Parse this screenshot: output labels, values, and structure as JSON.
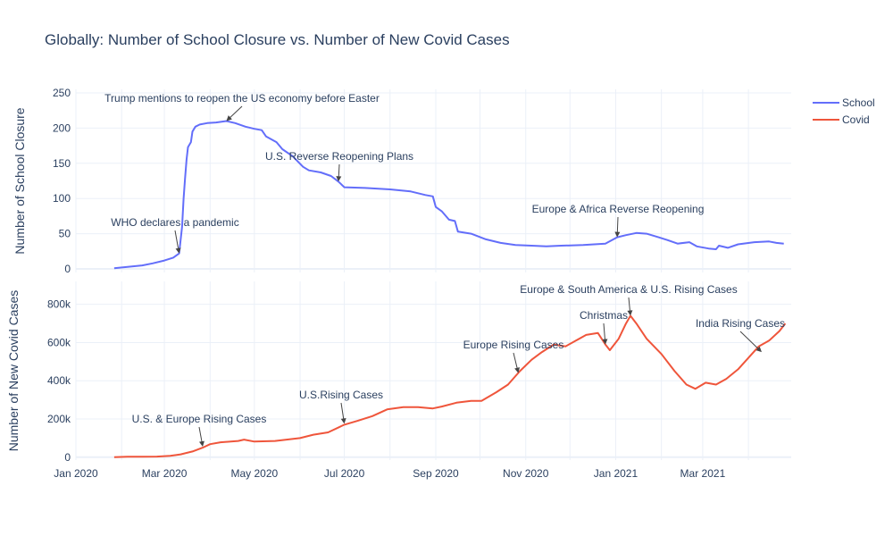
{
  "chart_data": {
    "type": "line",
    "title": "Globally: Number of School Closure vs. Number of New Covid Cases",
    "legend": [
      {
        "name": "School",
        "color": "#636efa"
      },
      {
        "name": "Covid",
        "color": "#ef553b"
      }
    ],
    "legend_position": "top-right",
    "x_ticks": [
      "Jan 2020",
      "Mar 2020",
      "May 2020",
      "Jul 2020",
      "Sep 2020",
      "Nov 2020",
      "Jan 2021",
      "Mar 2021"
    ],
    "xlim": [
      "2020-01-01",
      "2021-04-30"
    ],
    "grid": true,
    "subplots": [
      {
        "name": "school",
        "ylabel": "Number of School Closure",
        "ylim": [
          -5,
          255
        ],
        "y_ticks": [
          "0",
          "50",
          "100",
          "150",
          "200",
          "250"
        ],
        "y_tick_values": [
          0,
          50,
          100,
          150,
          200,
          250
        ],
        "series": [
          {
            "name": "School",
            "color": "#636efa",
            "points": [
              [
                "2020-01-27",
                1
              ],
              [
                "2020-02-05",
                3
              ],
              [
                "2020-02-15",
                5
              ],
              [
                "2020-02-22",
                8
              ],
              [
                "2020-03-01",
                12
              ],
              [
                "2020-03-07",
                16
              ],
              [
                "2020-03-11",
                22
              ],
              [
                "2020-03-13",
                60
              ],
              [
                "2020-03-14",
                100
              ],
              [
                "2020-03-15",
                128
              ],
              [
                "2020-03-16",
                155
              ],
              [
                "2020-03-17",
                173
              ],
              [
                "2020-03-19",
                180
              ],
              [
                "2020-03-20",
                195
              ],
              [
                "2020-03-22",
                202
              ],
              [
                "2020-03-25",
                205
              ],
              [
                "2020-03-30",
                207
              ],
              [
                "2020-04-05",
                208
              ],
              [
                "2020-04-12",
                210
              ],
              [
                "2020-04-18",
                207
              ],
              [
                "2020-04-25",
                202
              ],
              [
                "2020-05-01",
                199
              ],
              [
                "2020-05-06",
                197
              ],
              [
                "2020-05-09",
                188
              ],
              [
                "2020-05-16",
                180
              ],
              [
                "2020-05-20",
                170
              ],
              [
                "2020-05-27",
                160
              ],
              [
                "2020-06-03",
                145
              ],
              [
                "2020-06-07",
                140
              ],
              [
                "2020-06-15",
                137
              ],
              [
                "2020-06-22",
                132
              ],
              [
                "2020-06-27",
                124
              ],
              [
                "2020-07-01",
                116
              ],
              [
                "2020-07-15",
                115
              ],
              [
                "2020-08-01",
                113
              ],
              [
                "2020-08-15",
                110
              ],
              [
                "2020-08-25",
                105
              ],
              [
                "2020-08-30",
                103
              ],
              [
                "2020-09-01",
                88
              ],
              [
                "2020-09-05",
                82
              ],
              [
                "2020-09-10",
                70
              ],
              [
                "2020-09-14",
                68
              ],
              [
                "2020-09-16",
                53
              ],
              [
                "2020-09-25",
                50
              ],
              [
                "2020-10-05",
                42
              ],
              [
                "2020-10-15",
                37
              ],
              [
                "2020-10-25",
                34
              ],
              [
                "2020-11-05",
                33
              ],
              [
                "2020-11-15",
                32
              ],
              [
                "2020-11-25",
                33
              ],
              [
                "2020-12-10",
                34
              ],
              [
                "2020-12-25",
                36
              ],
              [
                "2021-01-02",
                45
              ],
              [
                "2021-01-08",
                48
              ],
              [
                "2021-01-15",
                51
              ],
              [
                "2021-01-22",
                50
              ],
              [
                "2021-01-30",
                45
              ],
              [
                "2021-02-05",
                41
              ],
              [
                "2021-02-12",
                36
              ],
              [
                "2021-02-20",
                38
              ],
              [
                "2021-02-25",
                32
              ],
              [
                "2021-03-05",
                29
              ],
              [
                "2021-03-10",
                28
              ],
              [
                "2021-03-12",
                33
              ],
              [
                "2021-03-18",
                30
              ],
              [
                "2021-03-25",
                35
              ],
              [
                "2021-04-05",
                38
              ],
              [
                "2021-04-15",
                39
              ],
              [
                "2021-04-20",
                37
              ],
              [
                "2021-04-25",
                36
              ]
            ]
          }
        ],
        "annotations": [
          {
            "text": "Trump mentions to reopen the US economy before Easter",
            "x": "2020-04-12",
            "y": 210
          },
          {
            "text": "U.S. Reverse Reopening Plans",
            "x": "2020-06-27",
            "y": 124
          },
          {
            "text": "WHO declares a pandemic",
            "x": "2020-03-11",
            "y": 22
          },
          {
            "text": "Europe & Africa Reverse Reopening",
            "x": "2021-01-02",
            "y": 45
          }
        ]
      },
      {
        "name": "covid",
        "ylabel": "Number of New Covid Cases",
        "ylim": [
          -15000,
          920000
        ],
        "y_ticks": [
          "0",
          "200k",
          "400k",
          "600k",
          "800k"
        ],
        "y_tick_values": [
          0,
          200000,
          400000,
          600000,
          800000
        ],
        "series": [
          {
            "name": "Covid",
            "color": "#ef553b",
            "points": [
              [
                "2020-01-27",
                500
              ],
              [
                "2020-02-05",
                2500
              ],
              [
                "2020-02-15",
                2500
              ],
              [
                "2020-02-25",
                3000
              ],
              [
                "2020-03-05",
                7000
              ],
              [
                "2020-03-12",
                15000
              ],
              [
                "2020-03-20",
                30000
              ],
              [
                "2020-03-27",
                50000
              ],
              [
                "2020-04-01",
                68000
              ],
              [
                "2020-04-08",
                78000
              ],
              [
                "2020-04-15",
                82000
              ],
              [
                "2020-04-20",
                85000
              ],
              [
                "2020-04-24",
                92000
              ],
              [
                "2020-05-01",
                82000
              ],
              [
                "2020-05-15",
                85000
              ],
              [
                "2020-06-01",
                100000
              ],
              [
                "2020-06-10",
                118000
              ],
              [
                "2020-06-20",
                130000
              ],
              [
                "2020-07-01",
                170000
              ],
              [
                "2020-07-10",
                190000
              ],
              [
                "2020-07-20",
                215000
              ],
              [
                "2020-07-30",
                250000
              ],
              [
                "2020-08-10",
                262000
              ],
              [
                "2020-08-20",
                262000
              ],
              [
                "2020-08-30",
                255000
              ],
              [
                "2020-09-05",
                265000
              ],
              [
                "2020-09-15",
                285000
              ],
              [
                "2020-09-25",
                295000
              ],
              [
                "2020-10-02",
                295000
              ],
              [
                "2020-10-12",
                340000
              ],
              [
                "2020-10-20",
                380000
              ],
              [
                "2020-10-28",
                450000
              ],
              [
                "2020-11-05",
                510000
              ],
              [
                "2020-11-12",
                550000
              ],
              [
                "2020-11-20",
                590000
              ],
              [
                "2020-11-28",
                580000
              ],
              [
                "2020-12-05",
                610000
              ],
              [
                "2020-12-12",
                640000
              ],
              [
                "2020-12-20",
                650000
              ],
              [
                "2020-12-25",
                590000
              ],
              [
                "2020-12-28",
                560000
              ],
              [
                "2021-01-03",
                620000
              ],
              [
                "2021-01-08",
                700000
              ],
              [
                "2021-01-11",
                740000
              ],
              [
                "2021-01-15",
                700000
              ],
              [
                "2021-01-22",
                620000
              ],
              [
                "2021-02-01",
                540000
              ],
              [
                "2021-02-10",
                450000
              ],
              [
                "2021-02-18",
                380000
              ],
              [
                "2021-02-24",
                358000
              ],
              [
                "2021-03-03",
                390000
              ],
              [
                "2021-03-10",
                380000
              ],
              [
                "2021-03-17",
                410000
              ],
              [
                "2021-03-25",
                460000
              ],
              [
                "2021-04-01",
                520000
              ],
              [
                "2021-04-08",
                580000
              ],
              [
                "2021-04-15",
                610000
              ],
              [
                "2021-04-22",
                660000
              ],
              [
                "2021-04-26",
                700000
              ]
            ]
          }
        ],
        "annotations": [
          {
            "text": "Europe & South America & U.S. Rising Cases",
            "x": "2021-01-11",
            "y": 740000
          },
          {
            "text": "Christmas",
            "x": "2020-12-25",
            "y": 590000
          },
          {
            "text": "India Rising Cases",
            "x": "2021-04-10",
            "y": 550000
          },
          {
            "text": "Europe Rising Cases",
            "x": "2020-10-27",
            "y": 440000
          },
          {
            "text": "U.S.Rising Cases",
            "x": "2020-07-01",
            "y": 175000
          },
          {
            "text": "U.S. & Europe Rising Cases",
            "x": "2020-03-27",
            "y": 55000
          }
        ]
      }
    ]
  }
}
